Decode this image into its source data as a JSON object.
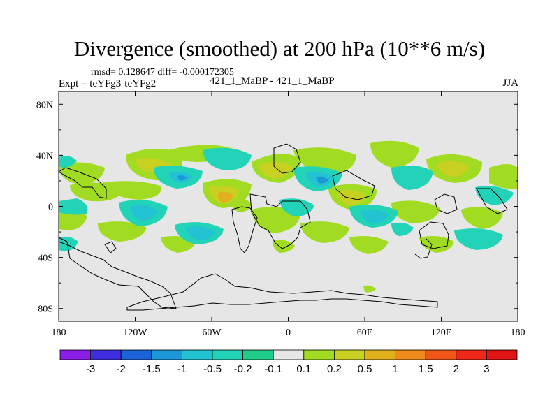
{
  "chart_data": {
    "type": "heatmap",
    "title": "Divergence (smoothed) at 200 hPa (10**6 m/s)",
    "stats_text": "rmsd= 0.128647 diff= -0.000172305",
    "left_label": "Expt = teYFg3-teYFg2",
    "center_label": "421_1_MaBP - 421_1_MaBP",
    "right_label": "JJA",
    "x_ticks": [
      "180",
      "120W",
      "60W",
      "0",
      "60E",
      "120E",
      "180"
    ],
    "y_ticks": [
      "80N",
      "40N",
      "0",
      "40S",
      "80S"
    ],
    "x_range": [
      -180,
      180
    ],
    "y_range": [
      -90,
      90
    ],
    "colorbar": {
      "labels": [
        "-3",
        "-2",
        "-1.5",
        "-1",
        "-0.5",
        "-0.2",
        "-0.1",
        "0.1",
        "0.2",
        "0.5",
        "1",
        "1.5",
        "2",
        "3"
      ],
      "colors": [
        "#8a1ee6",
        "#3f2ee0",
        "#1c62d8",
        "#1c98d8",
        "#22c2d2",
        "#22d3b8",
        "#20cc8a",
        "#e6e6e6",
        "#a2dc22",
        "#c8d021",
        "#e0b01e",
        "#f08a1a",
        "#f05518",
        "#ee2818",
        "#e01414"
      ]
    }
  }
}
